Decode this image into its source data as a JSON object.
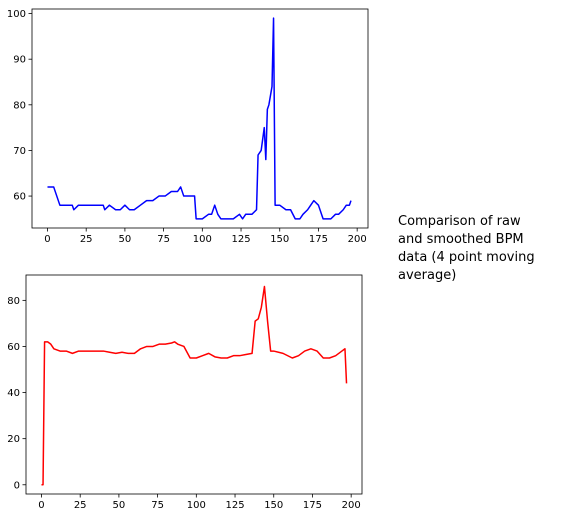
{
  "caption": "Comparison of raw and smoothed BPM data (4 point moving average)",
  "chart_data": [
    {
      "type": "line",
      "title": "",
      "xlabel": "",
      "ylabel": "",
      "color": "#0000ff",
      "xlim": [
        -10,
        207
      ],
      "ylim": [
        53,
        101
      ],
      "xticks": [
        0,
        25,
        50,
        75,
        100,
        125,
        150,
        175,
        200
      ],
      "yticks": [
        60,
        70,
        80,
        90,
        100
      ],
      "grid": false,
      "series": [
        {
          "x": [
            0,
            4,
            8,
            12,
            16,
            17,
            20,
            23,
            28,
            32,
            36,
            37,
            40,
            44,
            47,
            50,
            53,
            56,
            60,
            64,
            68,
            72,
            76,
            80,
            84,
            86,
            88,
            92,
            95,
            96,
            100,
            104,
            106,
            108,
            110,
            112,
            116,
            120,
            124,
            126,
            128,
            132,
            135,
            136,
            138,
            140,
            141,
            142,
            143,
            145,
            146,
            147,
            150,
            154,
            157,
            160,
            163,
            165,
            168,
            170,
            172,
            175,
            178,
            180,
            183,
            186,
            188,
            191,
            193,
            195,
            196
          ],
          "y": [
            62,
            62,
            58,
            58,
            58,
            57,
            58,
            58,
            58,
            58,
            58,
            57,
            58,
            57,
            57,
            58,
            57,
            57,
            58,
            59,
            59,
            60,
            60,
            61,
            61,
            62,
            60,
            60,
            60,
            55,
            55,
            56,
            56,
            58,
            56,
            55,
            55,
            55,
            56,
            55,
            56,
            56,
            57,
            69,
            70,
            75,
            68,
            79,
            80,
            84,
            99,
            58,
            58,
            57,
            57,
            55,
            55,
            56,
            57,
            58,
            59,
            58,
            55,
            55,
            55,
            56,
            56,
            57,
            58,
            58,
            59
          ]
        }
      ]
    },
    {
      "type": "line",
      "title": "",
      "xlabel": "",
      "ylabel": "",
      "color": "#ff0000",
      "xlim": [
        -10,
        207
      ],
      "ylim": [
        -4,
        91
      ],
      "xticks": [
        0,
        25,
        50,
        75,
        100,
        125,
        150,
        175,
        200
      ],
      "yticks": [
        0,
        20,
        40,
        60,
        80
      ],
      "grid": false,
      "series": [
        {
          "x": [
            0,
            1,
            2,
            4,
            6,
            8,
            12,
            16,
            20,
            24,
            28,
            32,
            36,
            40,
            44,
            48,
            52,
            56,
            60,
            64,
            68,
            72,
            76,
            80,
            84,
            86,
            88,
            92,
            96,
            100,
            104,
            108,
            112,
            116,
            120,
            124,
            128,
            132,
            136,
            138,
            140,
            142,
            144,
            146,
            148,
            150,
            156,
            162,
            166,
            170,
            174,
            178,
            182,
            186,
            190,
            194,
            196,
            197
          ],
          "y": [
            0,
            0,
            62,
            62,
            61,
            59,
            58,
            58,
            57,
            58,
            58,
            58,
            58,
            58,
            57.5,
            57,
            57.5,
            57,
            57,
            59,
            60,
            60,
            61,
            61,
            61.5,
            62,
            61,
            60,
            55,
            55,
            56,
            57,
            55.5,
            55,
            55,
            56,
            56,
            56.5,
            57,
            71,
            72,
            77,
            86,
            71,
            58,
            58,
            57,
            55,
            56,
            58,
            59,
            58,
            55,
            55,
            56,
            58,
            59,
            44
          ]
        }
      ]
    }
  ]
}
